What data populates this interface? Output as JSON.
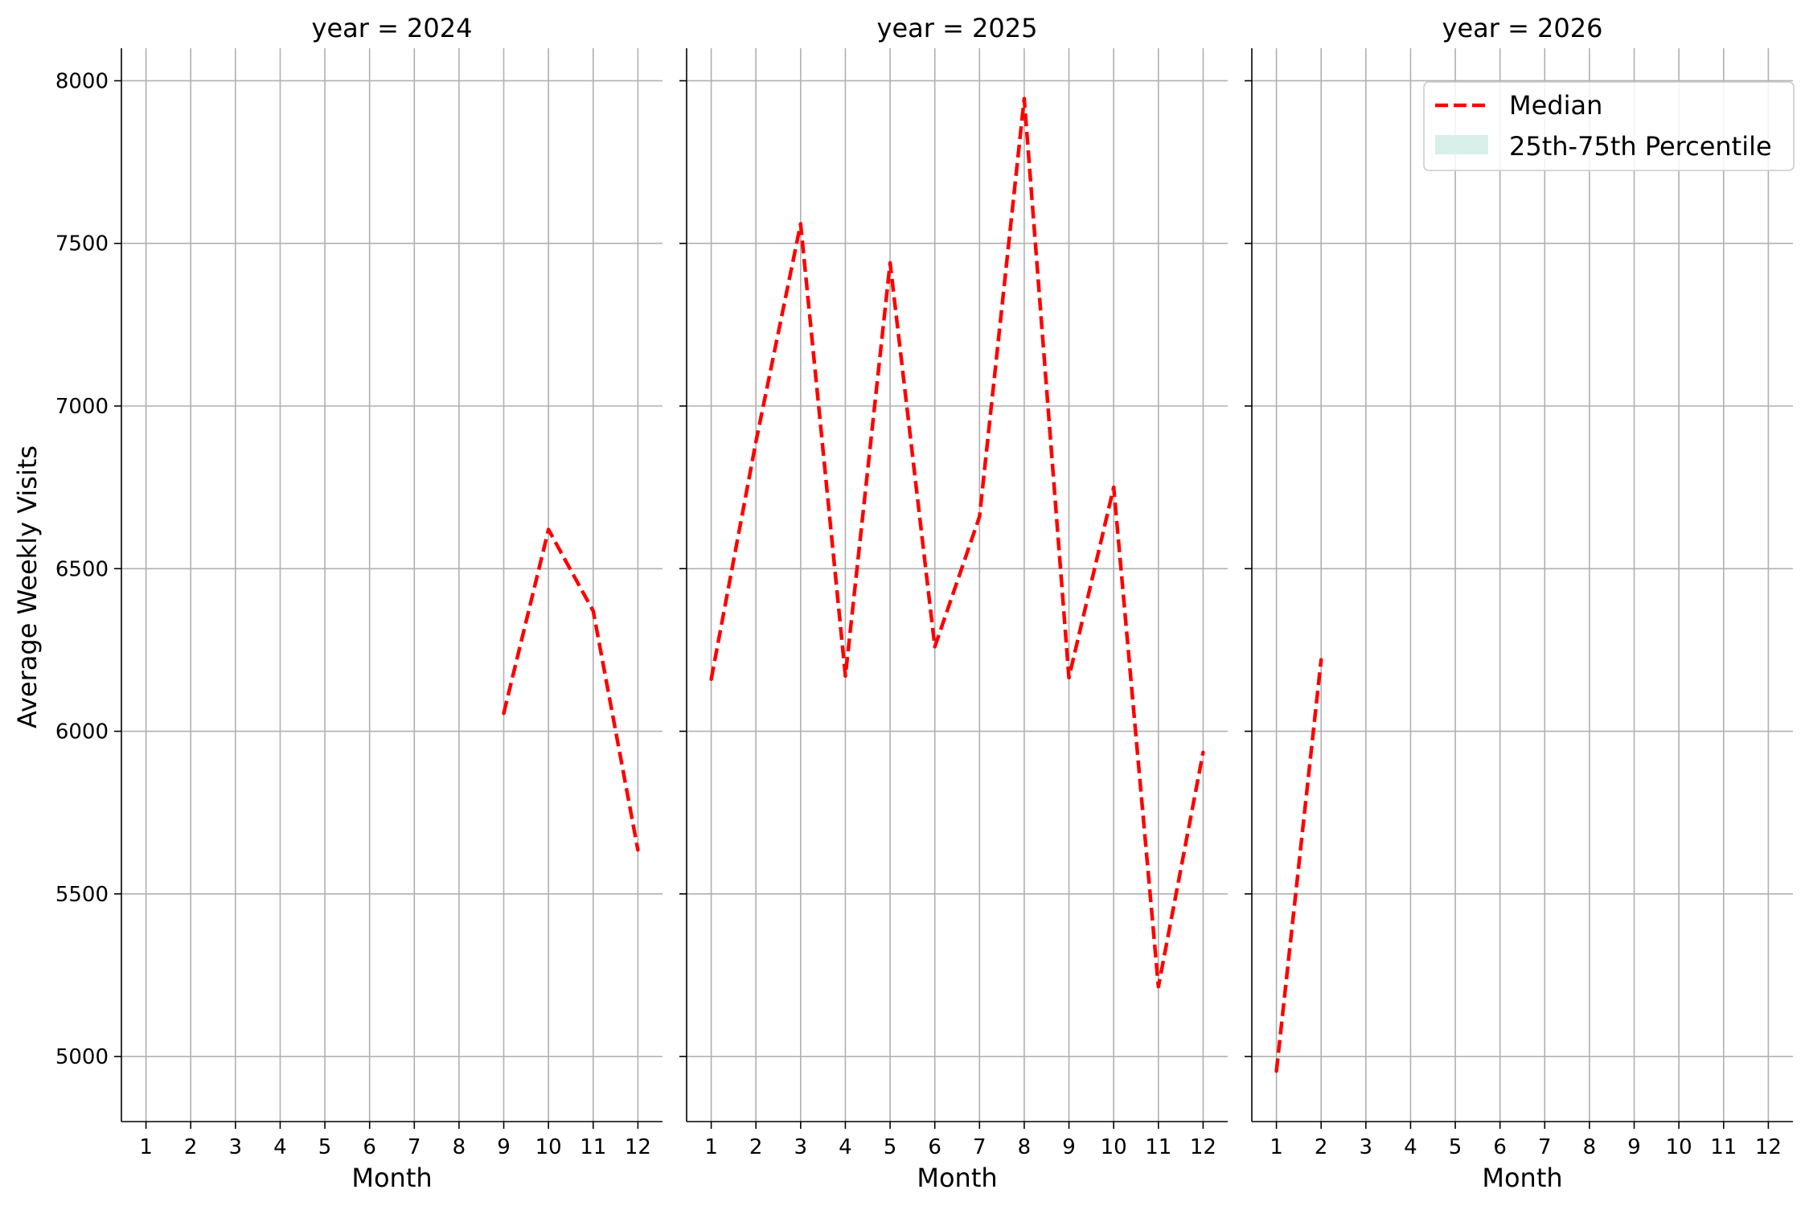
{
  "chart_data": {
    "type": "line",
    "ylabel": "Average Weekly Visits",
    "xlabel": "Month",
    "ylim": [
      4800,
      8100
    ],
    "yticks": [
      5000,
      5500,
      6000,
      6500,
      7000,
      7500,
      8000
    ],
    "xticks": [
      1,
      2,
      3,
      4,
      5,
      6,
      7,
      8,
      9,
      10,
      11,
      12
    ],
    "grid": true,
    "legend": {
      "placement": "top-right",
      "entries": [
        "Median",
        "25th-75th Percentile"
      ]
    },
    "colors": {
      "median": "#ff0000",
      "band": "#d9efe9"
    },
    "panels": [
      {
        "title": "year = 2024",
        "x": [
          9,
          10,
          11,
          12
        ],
        "median": [
          6055,
          6620,
          6370,
          5635
        ]
      },
      {
        "title": "year = 2025",
        "x": [
          1,
          2,
          3,
          4,
          5,
          6,
          7,
          8,
          9,
          10,
          11,
          12
        ],
        "median": [
          6160,
          6890,
          7560,
          6170,
          7440,
          6260,
          6660,
          7945,
          6165,
          6750,
          5215,
          5935
        ]
      },
      {
        "title": "year = 2026",
        "x": [
          1,
          2
        ],
        "median": [
          4955,
          6220
        ]
      }
    ]
  }
}
